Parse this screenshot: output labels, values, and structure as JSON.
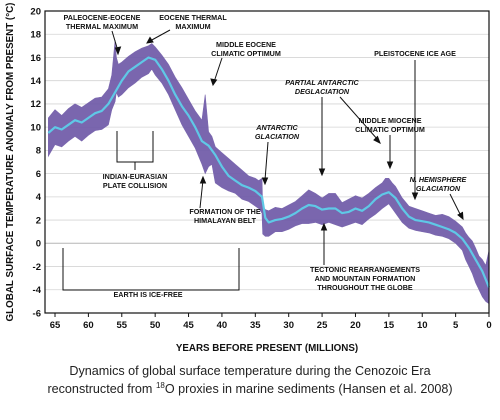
{
  "chart_data": {
    "type": "line",
    "xlabel": "YEARS BEFORE PRESENT (MILLIONS)",
    "ylabel": "GLOBAL SURFACE TEMPERATURE ANOMALY FROM PRESENT (°C)",
    "xlim": [
      66.5,
      0
    ],
    "ylim": [
      -6,
      20
    ],
    "x_ticks": [
      65,
      60,
      55,
      50,
      45,
      40,
      35,
      30,
      25,
      20,
      15,
      10,
      5,
      0
    ],
    "y_ticks": [
      -6,
      -4,
      -2,
      0,
      2,
      4,
      6,
      8,
      10,
      12,
      14,
      16,
      18,
      20
    ],
    "grid": "horizontal",
    "series": [
      {
        "color": "#6f5aa8",
        "x": [
          66,
          65,
          64,
          63,
          62,
          61,
          60,
          59,
          58,
          57,
          56.5,
          56,
          55.8,
          55.5,
          55,
          54,
          53,
          52,
          51,
          50.5,
          50,
          49,
          48,
          47,
          46,
          45,
          44,
          43,
          42.5,
          42,
          41.5,
          41,
          40,
          39,
          38,
          37,
          36,
          35,
          34.5,
          34,
          33.9,
          33.5,
          33,
          32,
          31,
          30,
          29,
          28,
          27,
          26,
          25,
          24,
          23,
          22,
          21,
          20,
          19,
          18,
          17,
          16,
          15.5,
          15,
          14.5,
          14,
          13,
          12,
          11,
          10,
          9,
          8,
          7,
          6,
          5,
          4,
          3.5,
          3,
          2.5,
          2,
          1.5,
          1,
          0.5,
          0
        ],
        "y_low": [
          7.5,
          8.5,
          8.3,
          8.8,
          9.2,
          8.8,
          9.3,
          9.7,
          9.8,
          10.2,
          11.5,
          12.2,
          13.0,
          12.6,
          12.8,
          13.4,
          13.8,
          14.3,
          14.6,
          15.0,
          14.5,
          13.8,
          12.8,
          11.5,
          10.2,
          9.2,
          8.2,
          6.8,
          6.0,
          6.6,
          6.8,
          5.2,
          4.8,
          4.5,
          4.3,
          3.8,
          3.6,
          3.2,
          3.0,
          2.6,
          0.8,
          0.6,
          0.6,
          1.0,
          1.0,
          1.2,
          1.5,
          1.7,
          1.7,
          1.8,
          1.6,
          1.8,
          1.6,
          1.4,
          1.6,
          1.8,
          1.6,
          2.1,
          2.5,
          3.0,
          3.2,
          3.4,
          3.0,
          2.6,
          1.8,
          1.3,
          1.1,
          1.0,
          0.9,
          0.7,
          0.6,
          0.4,
          0.0,
          -0.6,
          -1.4,
          -2.0,
          -2.6,
          -3.4,
          -4.0,
          -4.6,
          -5.0,
          -5.2
        ],
        "y_high": [
          10.8,
          11.5,
          11.0,
          11.6,
          12.0,
          11.7,
          12.1,
          12.5,
          12.6,
          13.3,
          14.5,
          17.5,
          16.0,
          15.4,
          15.6,
          16.1,
          16.5,
          16.8,
          17.0,
          17.2,
          16.9,
          16.2,
          15.4,
          14.3,
          13.4,
          12.4,
          11.4,
          10.6,
          12.8,
          9.6,
          9.2,
          8.3,
          7.8,
          7.3,
          6.8,
          6.3,
          5.8,
          5.6,
          5.4,
          5.6,
          3.2,
          2.9,
          2.8,
          3.1,
          3.0,
          3.3,
          3.6,
          4.1,
          4.6,
          4.3,
          3.9,
          4.3,
          4.3,
          3.5,
          3.8,
          4.1,
          3.9,
          4.3,
          4.8,
          5.2,
          5.6,
          5.6,
          5.2,
          4.9,
          3.9,
          3.2,
          3.0,
          2.8,
          2.6,
          2.4,
          2.5,
          2.3,
          1.9,
          1.4,
          0.9,
          0.5,
          0.2,
          -0.4,
          -1.1,
          -1.4,
          -1.9,
          -0.6
        ]
      },
      {
        "color": "#5fc8e6",
        "x": [
          66,
          65,
          64,
          63,
          62,
          61,
          60,
          59,
          58,
          57,
          56,
          55,
          54,
          53,
          52,
          51,
          50,
          49,
          48,
          47,
          46,
          45,
          44,
          43,
          42,
          41,
          40,
          39,
          38,
          37,
          36,
          35,
          34,
          33.5,
          33,
          32,
          31,
          30,
          29,
          28,
          27,
          26,
          25,
          24,
          23,
          22,
          21,
          20,
          19,
          18,
          17,
          16,
          15,
          14,
          13,
          12,
          11,
          10,
          9,
          8,
          7,
          6,
          5,
          4,
          3,
          2,
          1,
          0
        ],
        "y": [
          9.5,
          10.0,
          9.8,
          10.2,
          10.6,
          10.4,
          10.8,
          11.2,
          11.4,
          12.0,
          13.0,
          14.0,
          14.8,
          15.2,
          15.6,
          16.0,
          15.8,
          15.0,
          14.0,
          12.8,
          11.8,
          11.0,
          10.0,
          8.8,
          8.4,
          7.6,
          6.6,
          5.8,
          5.4,
          5.0,
          4.8,
          4.5,
          4.0,
          2.2,
          1.8,
          2.0,
          2.1,
          2.3,
          2.6,
          3.0,
          3.3,
          3.2,
          2.9,
          3.0,
          3.0,
          2.6,
          2.7,
          3.0,
          2.8,
          3.2,
          3.8,
          4.2,
          4.4,
          3.9,
          3.0,
          2.3,
          2.0,
          1.9,
          1.8,
          1.6,
          1.4,
          1.2,
          0.9,
          0.4,
          -0.4,
          -1.4,
          -2.4,
          -3.8
        ]
      }
    ],
    "annotations": [
      "PALEOCENE-EOCENE",
      "THERMAL MAXIMUM",
      "EOCENE THERMAL",
      "MAXIMUM",
      "MIDDLE EOCENE",
      "CLIMATIC OPTIMUM",
      "PLEISTOCENE ICE AGE",
      "PARTIAL ANTARCTIC",
      "DEGLACIATION",
      "MIDDLE MIOCENE",
      "CLIMATIC OPTIMUM",
      "ANTARCTIC",
      "GLACIATION",
      "N. HEMISPHERE",
      "GLACIATION",
      "INDIAN-EURASIAN",
      "PLATE COLLISION",
      "FORMATION OF THE",
      "HIMALAYAN BELT",
      "TECTONIC REARRANGEMENTS",
      "AND MOUNTAIN FORMATION",
      "THROUGHOUT THE GLOBE",
      "EARTH IS ICE-FREE"
    ]
  },
  "caption": {
    "line1": "Dynamics of global surface temperature during the Cenozoic Era",
    "line2_pre": "reconstructed from ",
    "line2_sup": "18",
    "line2_post": "O proxies in marine sediments (Hansen et al. 2008)"
  }
}
